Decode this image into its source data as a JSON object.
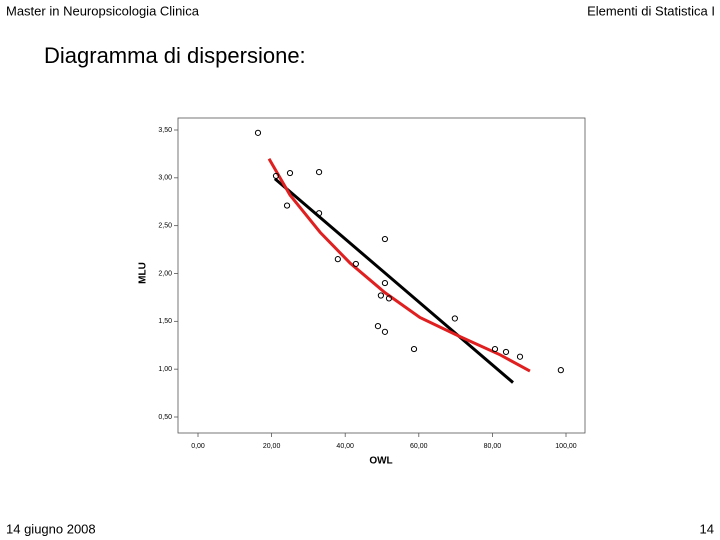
{
  "slide": {
    "header_left": "Master in Neuropsicologia Clinica",
    "header_right": "Elementi di Statistica I",
    "title": "Diagramma di dispersione:",
    "footer_left": "14 giugno 2008",
    "footer_right": "14"
  },
  "chart_data": {
    "type": "scatter",
    "x_label": "OWL",
    "y_label": "MLU",
    "color": "#000000",
    "x": [
      16.3,
      21.2,
      25,
      24.2,
      32.9,
      32.9,
      50.8,
      38,
      42.9,
      50.8,
      49.7,
      51.9,
      69.8,
      48.9,
      50.8,
      58.7,
      80.7,
      83.7,
      87.5,
      98.6
    ],
    "values": [
      3.47,
      3.02,
      3.05,
      2.71,
      3.06,
      2.63,
      2.36,
      2.15,
      2.1,
      1.9,
      1.77,
      1.74,
      1.53,
      1.45,
      1.39,
      1.21,
      1.21,
      1.18,
      1.13,
      0.99
    ],
    "lines": [
      {
        "color": "#000000",
        "x": [
          20.9,
          85.6
        ],
        "values": [
          2.99,
          0.86
        ]
      },
      {
        "color": "#e02020",
        "x": [
          19.3,
          25,
          33.2,
          41.3,
          50.8,
          60.3,
          71.2,
          82.1,
          90.2
        ],
        "values": [
          3.2,
          2.82,
          2.43,
          2.11,
          1.8,
          1.54,
          1.34,
          1.15,
          0.98
        ]
      }
    ],
    "xlim": [
      0,
      100
    ],
    "ylim": [
      0.5,
      3.5
    ],
    "xticks": [
      {
        "value": 0,
        "label": "0,00"
      },
      {
        "value": 20,
        "label": "20,00"
      },
      {
        "value": 40,
        "label": "40,00"
      },
      {
        "value": 60,
        "label": "60,00"
      },
      {
        "value": 80,
        "label": "80,00"
      },
      {
        "value": 100,
        "label": "100,00"
      }
    ],
    "yticks": [
      {
        "value": 0.5,
        "label": "0,50"
      },
      {
        "value": 1,
        "label": "1,00"
      },
      {
        "value": 1.5,
        "label": "1,50"
      },
      {
        "value": 2,
        "label": "2,00"
      },
      {
        "value": 2.5,
        "label": "2,50"
      },
      {
        "value": 3,
        "label": "3,00"
      },
      {
        "value": 3.5,
        "label": "3,50"
      }
    ]
  }
}
